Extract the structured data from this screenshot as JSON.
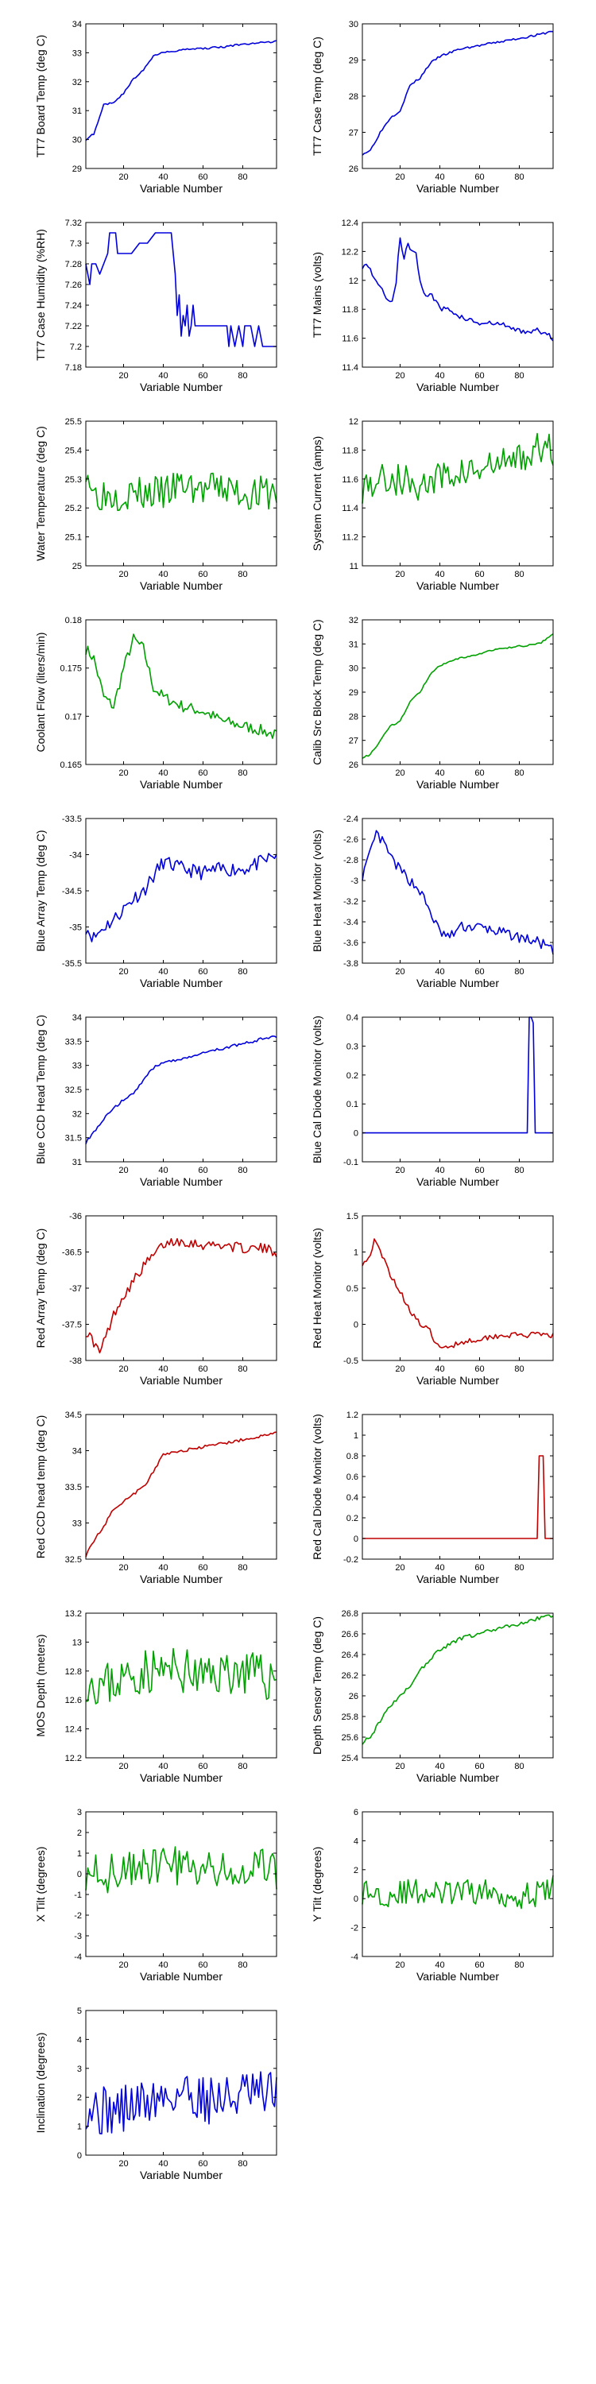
{
  "colors": {
    "blue": "#0000dd",
    "green": "#00a000",
    "red": "#c00000",
    "axis": "#000000"
  },
  "chart_data": [
    {
      "type": "line",
      "xlabel": "Variable Number",
      "ylabel": "TT7 Board Temp (deg C)",
      "xlim": [
        1,
        97
      ],
      "ylim": [
        29,
        34
      ],
      "xticks": [
        20,
        40,
        60,
        80
      ],
      "yticks": [
        29,
        30,
        31,
        32,
        33,
        34
      ],
      "color": "blue",
      "noise": 0.03,
      "x": [
        1,
        5,
        10,
        15,
        20,
        25,
        30,
        35,
        40,
        50,
        60,
        70,
        80,
        90,
        97
      ],
      "y": [
        30.0,
        30.2,
        31.2,
        31.3,
        31.6,
        32.1,
        32.4,
        32.9,
        33.0,
        33.1,
        33.15,
        33.2,
        33.3,
        33.35,
        33.4
      ]
    },
    {
      "type": "line",
      "xlabel": "Variable Number",
      "ylabel": "TT7 Case Temp (deg C)",
      "xlim": [
        1,
        97
      ],
      "ylim": [
        26,
        30
      ],
      "xticks": [
        20,
        40,
        60,
        80
      ],
      "yticks": [
        26,
        27,
        28,
        29,
        30
      ],
      "color": "blue",
      "noise": 0.03,
      "x": [
        1,
        5,
        10,
        15,
        20,
        25,
        30,
        35,
        40,
        50,
        60,
        70,
        80,
        90,
        97
      ],
      "y": [
        26.4,
        26.5,
        27.0,
        27.4,
        27.6,
        28.3,
        28.5,
        28.9,
        29.1,
        29.3,
        29.4,
        29.5,
        29.6,
        29.7,
        29.8
      ]
    },
    {
      "type": "line",
      "xlabel": "Variable Number",
      "ylabel": "TT7 Case Humidity (%RH)",
      "xlim": [
        1,
        97
      ],
      "ylim": [
        7.18,
        7.32
      ],
      "xticks": [
        20,
        40,
        60,
        80
      ],
      "yticks": [
        7.18,
        7.2,
        7.22,
        7.24,
        7.26,
        7.28,
        7.3,
        7.32
      ],
      "color": "blue",
      "noise": 0.0,
      "steps": true,
      "x": [
        1,
        3,
        4,
        6,
        8,
        10,
        12,
        13,
        14,
        16,
        17,
        18,
        20,
        24,
        28,
        32,
        36,
        40,
        44,
        46,
        47,
        48,
        49,
        50,
        51,
        52,
        53,
        54,
        55,
        56,
        58,
        60,
        62,
        64,
        66,
        68,
        70,
        72,
        73,
        74,
        76,
        78,
        80,
        81,
        82,
        84,
        86,
        88,
        90,
        92,
        94,
        96,
        97
      ],
      "y": [
        7.28,
        7.26,
        7.28,
        7.28,
        7.27,
        7.28,
        7.29,
        7.31,
        7.31,
        7.31,
        7.29,
        7.29,
        7.29,
        7.29,
        7.3,
        7.3,
        7.31,
        7.31,
        7.31,
        7.27,
        7.23,
        7.25,
        7.21,
        7.23,
        7.22,
        7.24,
        7.21,
        7.22,
        7.24,
        7.22,
        7.22,
        7.22,
        7.22,
        7.22,
        7.22,
        7.22,
        7.22,
        7.22,
        7.2,
        7.22,
        7.2,
        7.22,
        7.2,
        7.22,
        7.22,
        7.22,
        7.2,
        7.22,
        7.2,
        7.2,
        7.2,
        7.2,
        7.2
      ]
    },
    {
      "type": "line",
      "xlabel": "Variable Number",
      "ylabel": "TT7 Mains  (volts)",
      "xlim": [
        1,
        97
      ],
      "ylim": [
        11.4,
        12.4
      ],
      "xticks": [
        20,
        40,
        60,
        80
      ],
      "yticks": [
        11.4,
        11.6,
        11.8,
        12.0,
        12.2,
        12.4
      ],
      "color": "blue",
      "noise": 0.02,
      "x": [
        1,
        4,
        8,
        12,
        16,
        18,
        20,
        22,
        24,
        26,
        28,
        30,
        32,
        36,
        40,
        45,
        50,
        60,
        70,
        80,
        90,
        97
      ],
      "y": [
        12.1,
        12.1,
        12.0,
        11.9,
        11.85,
        12.0,
        12.3,
        12.15,
        12.25,
        12.2,
        12.2,
        12.0,
        11.9,
        11.9,
        11.8,
        11.8,
        11.75,
        11.7,
        11.7,
        11.65,
        11.65,
        11.6
      ]
    },
    {
      "type": "line",
      "xlabel": "Variable Number",
      "ylabel": "Water Temperature (deg C)",
      "xlim": [
        1,
        97
      ],
      "ylim": [
        25,
        25.5
      ],
      "xticks": [
        20,
        40,
        60,
        80
      ],
      "yticks": [
        25,
        25.1,
        25.2,
        25.3,
        25.4,
        25.5
      ],
      "color": "green",
      "noise": 0.06,
      "seed": 3,
      "x": [
        1,
        5,
        10,
        20,
        30,
        40,
        50,
        60,
        70,
        80,
        90,
        97
      ],
      "y": [
        25.35,
        25.25,
        25.25,
        25.25,
        25.25,
        25.25,
        25.28,
        25.26,
        25.27,
        25.25,
        25.25,
        25.25
      ]
    },
    {
      "type": "line",
      "xlabel": "Variable Number",
      "ylabel": "System Current (amps)",
      "xlim": [
        1,
        97
      ],
      "ylim": [
        11,
        12
      ],
      "xticks": [
        20,
        40,
        60,
        80
      ],
      "yticks": [
        11,
        11.2,
        11.4,
        11.6,
        11.8,
        12
      ],
      "color": "green",
      "noise": 0.12,
      "seed": 5,
      "x": [
        1,
        10,
        20,
        30,
        40,
        50,
        60,
        70,
        80,
        90,
        97
      ],
      "y": [
        11.55,
        11.6,
        11.6,
        11.55,
        11.6,
        11.65,
        11.65,
        11.7,
        11.75,
        11.8,
        11.8
      ]
    },
    {
      "type": "line",
      "xlabel": "Variable Number",
      "ylabel": "Coolant Flow (liters/min)",
      "xlim": [
        1,
        97
      ],
      "ylim": [
        0.165,
        0.18
      ],
      "xticks": [
        20,
        40,
        60,
        80
      ],
      "yticks": [
        0.165,
        0.17,
        0.175,
        0.18
      ],
      "color": "green",
      "noise": 0.0006,
      "seed": 7,
      "x": [
        1,
        5,
        10,
        15,
        20,
        25,
        30,
        35,
        40,
        50,
        60,
        70,
        80,
        90,
        97
      ],
      "y": [
        0.177,
        0.176,
        0.172,
        0.171,
        0.175,
        0.178,
        0.177,
        0.173,
        0.172,
        0.171,
        0.1705,
        0.1695,
        0.169,
        0.1685,
        0.168
      ]
    },
    {
      "type": "line",
      "xlabel": "Variable Number",
      "ylabel": "Calib Src Block Temp (deg C)",
      "xlim": [
        1,
        97
      ],
      "ylim": [
        26,
        32
      ],
      "xticks": [
        20,
        40,
        60,
        80
      ],
      "yticks": [
        26,
        27,
        28,
        29,
        30,
        31,
        32
      ],
      "color": "green",
      "noise": 0.04,
      "seed": 9,
      "x": [
        1,
        5,
        10,
        15,
        20,
        25,
        30,
        35,
        40,
        50,
        60,
        70,
        80,
        90,
        95,
        97
      ],
      "y": [
        26.3,
        26.4,
        27.0,
        27.6,
        27.8,
        28.6,
        29.0,
        29.7,
        30.1,
        30.4,
        30.6,
        30.8,
        30.9,
        31.0,
        31.3,
        31.4
      ]
    },
    {
      "type": "line",
      "xlabel": "Variable Number",
      "ylabel": "Blue Array Temp (deg C)",
      "xlim": [
        1,
        97
      ],
      "ylim": [
        -35.5,
        -33.5
      ],
      "xticks": [
        20,
        40,
        60,
        80
      ],
      "yticks": [
        -35.5,
        -35,
        -34.5,
        -34,
        -33.5
      ],
      "color": "blue",
      "noise": 0.1,
      "seed": 11,
      "x": [
        1,
        5,
        10,
        15,
        20,
        25,
        30,
        35,
        40,
        50,
        60,
        70,
        80,
        90,
        97
      ],
      "y": [
        -35.0,
        -35.15,
        -35.0,
        -34.9,
        -34.75,
        -34.6,
        -34.5,
        -34.3,
        -34.1,
        -34.2,
        -34.25,
        -34.2,
        -34.2,
        -34.1,
        -34.0
      ]
    },
    {
      "type": "line",
      "xlabel": "Variable Number",
      "ylabel": "Blue Heat Monitor (volts)",
      "xlim": [
        1,
        97
      ],
      "ylim": [
        -3.8,
        -2.4
      ],
      "xticks": [
        20,
        40,
        60,
        80
      ],
      "yticks": [
        -3.8,
        -3.6,
        -3.4,
        -3.2,
        -3.0,
        -2.8,
        -2.6,
        -2.4
      ],
      "color": "blue",
      "noise": 0.05,
      "seed": 13,
      "x": [
        1,
        4,
        8,
        12,
        16,
        20,
        25,
        30,
        35,
        40,
        45,
        50,
        60,
        70,
        80,
        90,
        95,
        97
      ],
      "y": [
        -2.95,
        -2.8,
        -2.55,
        -2.65,
        -2.8,
        -2.9,
        -3.0,
        -3.1,
        -3.3,
        -3.5,
        -3.55,
        -3.45,
        -3.45,
        -3.5,
        -3.55,
        -3.6,
        -3.65,
        -3.7
      ]
    },
    {
      "type": "line",
      "xlabel": "Variable Number",
      "ylabel": "Blue CCD Head Temp (deg C)",
      "xlim": [
        1,
        97
      ],
      "ylim": [
        31,
        34
      ],
      "xticks": [
        20,
        40,
        60,
        80
      ],
      "yticks": [
        31,
        31.5,
        32,
        32.5,
        33,
        33.5,
        34
      ],
      "color": "blue",
      "noise": 0.03,
      "seed": 15,
      "x": [
        1,
        5,
        10,
        15,
        20,
        25,
        30,
        35,
        40,
        50,
        60,
        70,
        80,
        90,
        97
      ],
      "y": [
        31.4,
        31.6,
        31.9,
        32.1,
        32.3,
        32.4,
        32.7,
        32.95,
        33.05,
        33.15,
        33.25,
        33.35,
        33.45,
        33.55,
        33.6
      ]
    },
    {
      "type": "line",
      "xlabel": "Variable Number",
      "ylabel": "Blue Cal Diode Monitor (volts)",
      "xlim": [
        1,
        97
      ],
      "ylim": [
        -0.1,
        0.4
      ],
      "xticks": [
        20,
        40,
        60,
        80
      ],
      "yticks": [
        -0.1,
        0,
        0.1,
        0.2,
        0.3,
        0.4
      ],
      "color": "blue",
      "noise": 0.0,
      "x": [
        1,
        84,
        85,
        86,
        87,
        88,
        89,
        97
      ],
      "y": [
        0.0,
        0.0,
        0.4,
        0.4,
        0.38,
        0.0,
        0.0,
        0.0
      ]
    },
    {
      "type": "line",
      "xlabel": "Variable Number",
      "ylabel": "Red Array Temp (deg C)",
      "xlim": [
        1,
        97
      ],
      "ylim": [
        -38,
        -36
      ],
      "xticks": [
        20,
        40,
        60,
        80
      ],
      "yticks": [
        -38,
        -37.5,
        -37,
        -36.5,
        -36
      ],
      "color": "red",
      "noise": 0.07,
      "seed": 17,
      "x": [
        1,
        4,
        8,
        12,
        16,
        20,
        25,
        30,
        35,
        40,
        45,
        50,
        60,
        70,
        80,
        90,
        97
      ],
      "y": [
        -37.6,
        -37.7,
        -37.9,
        -37.6,
        -37.3,
        -37.1,
        -36.9,
        -36.7,
        -36.55,
        -36.4,
        -36.35,
        -36.35,
        -36.4,
        -36.4,
        -36.45,
        -36.45,
        -36.5
      ]
    },
    {
      "type": "line",
      "xlabel": "Variable Number",
      "ylabel": "Red Heat Monitor (volts)",
      "xlim": [
        1,
        97
      ],
      "ylim": [
        -0.5,
        1.5
      ],
      "xticks": [
        20,
        40,
        60,
        80
      ],
      "yticks": [
        -0.5,
        0,
        0.5,
        1,
        1.5
      ],
      "color": "red",
      "noise": 0.04,
      "seed": 19,
      "x": [
        1,
        4,
        7,
        10,
        15,
        20,
        25,
        30,
        35,
        40,
        45,
        50,
        60,
        70,
        80,
        90,
        97
      ],
      "y": [
        0.85,
        0.9,
        1.15,
        1.0,
        0.7,
        0.45,
        0.2,
        0.0,
        -0.1,
        -0.35,
        -0.3,
        -0.25,
        -0.2,
        -0.15,
        -0.15,
        -0.15,
        -0.15
      ]
    },
    {
      "type": "line",
      "xlabel": "Variable Number",
      "ylabel": "Red CCD head temp (deg C)",
      "xlim": [
        1,
        97
      ],
      "ylim": [
        32.5,
        34.5
      ],
      "xticks": [
        20,
        40,
        60,
        80
      ],
      "yticks": [
        32.5,
        33,
        33.5,
        34,
        34.5
      ],
      "color": "red",
      "noise": 0.02,
      "seed": 21,
      "x": [
        1,
        5,
        10,
        15,
        20,
        25,
        30,
        35,
        40,
        50,
        60,
        70,
        80,
        90,
        97
      ],
      "y": [
        32.55,
        32.75,
        32.95,
        33.2,
        33.3,
        33.4,
        33.5,
        33.7,
        33.95,
        34.0,
        34.05,
        34.1,
        34.15,
        34.2,
        34.25
      ]
    },
    {
      "type": "line",
      "xlabel": "Variable Number",
      "ylabel": "Red Cal Diode Monitor (volts)",
      "xlim": [
        1,
        97
      ],
      "ylim": [
        -0.2,
        1.2
      ],
      "xticks": [
        20,
        40,
        60,
        80
      ],
      "yticks": [
        -0.2,
        0,
        0.2,
        0.4,
        0.6,
        0.8,
        1.0,
        1.2
      ],
      "color": "red",
      "noise": 0.0,
      "x": [
        1,
        89,
        90,
        91,
        92,
        93,
        97
      ],
      "y": [
        0.0,
        0.0,
        0.8,
        0.8,
        0.8,
        0.0,
        0.0
      ]
    },
    {
      "type": "line",
      "xlabel": "Variable Number",
      "ylabel": "MOS Depth  (meters)",
      "xlim": [
        1,
        97
      ],
      "ylim": [
        12.2,
        13.2
      ],
      "xticks": [
        20,
        40,
        60,
        80
      ],
      "yticks": [
        12.2,
        12.4,
        12.6,
        12.8,
        13.0,
        13.2
      ],
      "color": "green",
      "noise": 0.16,
      "seed": 23,
      "x": [
        1,
        10,
        20,
        30,
        40,
        50,
        60,
        70,
        80,
        90,
        97
      ],
      "y": [
        12.75,
        12.7,
        12.75,
        12.8,
        12.8,
        12.8,
        12.75,
        12.8,
        12.8,
        12.75,
        12.75
      ]
    },
    {
      "type": "line",
      "xlabel": "Variable Number",
      "ylabel": "Depth Sensor Temp (deg C)",
      "xlim": [
        1,
        97
      ],
      "ylim": [
        25.4,
        26.8
      ],
      "xticks": [
        20,
        40,
        60,
        80
      ],
      "yticks": [
        25.4,
        25.6,
        25.8,
        26.0,
        26.2,
        26.4,
        26.6,
        26.8
      ],
      "color": "green",
      "noise": 0.02,
      "seed": 25,
      "x": [
        1,
        5,
        10,
        15,
        20,
        25,
        30,
        35,
        40,
        50,
        60,
        70,
        80,
        90,
        97
      ],
      "y": [
        25.55,
        25.6,
        25.75,
        25.9,
        26.0,
        26.1,
        26.25,
        26.35,
        26.45,
        26.55,
        26.6,
        26.65,
        26.7,
        26.75,
        26.78
      ]
    },
    {
      "type": "line",
      "xlabel": "Variable Number",
      "ylabel": "X Tilt  (degrees)",
      "xlim": [
        1,
        97
      ],
      "ylim": [
        -4,
        3
      ],
      "xticks": [
        20,
        40,
        60,
        80
      ],
      "yticks": [
        -4,
        -3,
        -2,
        -1,
        0,
        1,
        2,
        3
      ],
      "color": "green",
      "noise": 1.0,
      "seed": 27,
      "x": [
        1,
        10,
        20,
        30,
        40,
        50,
        60,
        70,
        80,
        90,
        97
      ],
      "y": [
        0.2,
        0.0,
        0.2,
        0.3,
        0.5,
        0.3,
        0.2,
        0.0,
        -0.2,
        0.2,
        0.0
      ]
    },
    {
      "type": "line",
      "xlabel": "Variable Number",
      "ylabel": "Y Tilt  (degrees)",
      "xlim": [
        1,
        97
      ],
      "ylim": [
        -4,
        6
      ],
      "xticks": [
        20,
        40,
        60,
        80
      ],
      "yticks": [
        -4,
        -2,
        0,
        2,
        4,
        6
      ],
      "color": "green",
      "noise": 0.9,
      "seed": 29,
      "x": [
        1,
        10,
        20,
        30,
        40,
        50,
        60,
        70,
        80,
        90,
        97
      ],
      "y": [
        0.5,
        0.3,
        0.4,
        0.5,
        0.3,
        0.4,
        0.5,
        0.3,
        0.2,
        0.3,
        0.8
      ]
    },
    {
      "type": "line",
      "xlabel": "Variable Number",
      "ylabel": "Inclination  (degrees)",
      "xlim": [
        1,
        97
      ],
      "ylim": [
        0,
        5
      ],
      "xticks": [
        20,
        40,
        60,
        80
      ],
      "yticks": [
        0,
        1,
        2,
        3,
        4,
        5
      ],
      "color": "blue",
      "noise": 0.9,
      "seed": 31,
      "x": [
        1,
        10,
        20,
        30,
        40,
        50,
        60,
        70,
        80,
        90,
        97
      ],
      "y": [
        1.8,
        1.5,
        1.6,
        1.8,
        2.0,
        2.2,
        2.0,
        1.9,
        2.1,
        2.0,
        2.2
      ]
    }
  ]
}
